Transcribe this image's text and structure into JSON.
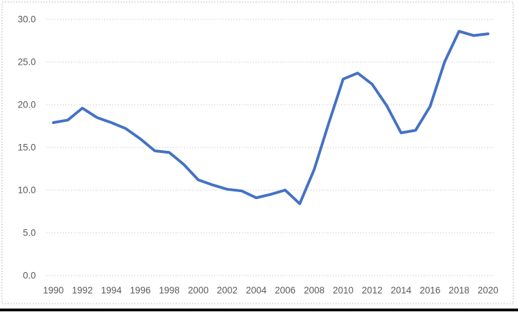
{
  "chart_data": {
    "type": "line",
    "title": "",
    "xlabel": "",
    "ylabel": "",
    "x": [
      1990,
      1991,
      1992,
      1993,
      1994,
      1995,
      1996,
      1997,
      1998,
      1999,
      2000,
      2001,
      2002,
      2003,
      2004,
      2005,
      2006,
      2007,
      2008,
      2009,
      2010,
      2011,
      2012,
      2013,
      2014,
      2015,
      2016,
      2017,
      2018,
      2019,
      2020
    ],
    "values": [
      17.9,
      18.2,
      19.6,
      18.5,
      17.9,
      17.2,
      16.0,
      14.6,
      14.4,
      13.0,
      11.2,
      10.6,
      10.1,
      9.9,
      9.1,
      9.5,
      10.0,
      8.4,
      12.4,
      17.8,
      23.0,
      23.7,
      22.4,
      19.9,
      16.7,
      17.0,
      19.8,
      25.0,
      28.6,
      28.1,
      28.3
    ],
    "ylim": [
      0,
      30
    ],
    "yticks": [
      0,
      5,
      10,
      15,
      20,
      25,
      30
    ],
    "ytick_labels": [
      "0.0",
      "5.0",
      "10.0",
      "15.0",
      "20.0",
      "25.0",
      "30.0"
    ],
    "xtick_labels": [
      "1990",
      "1992",
      "1994",
      "1996",
      "1998",
      "2000",
      "2002",
      "2004",
      "2006",
      "2008",
      "2010",
      "2012",
      "2014",
      "2016",
      "2018",
      "2020"
    ],
    "grid": "horizontal",
    "gridline_style": "dotted",
    "legend": "none",
    "colors": {
      "line": "#4472C4",
      "gridline": "#C8C8C8",
      "tick_label": "#595959",
      "chart_border": "#BFBFBF",
      "bottom_bar": "#000000",
      "background": "#FFFFFF"
    }
  }
}
